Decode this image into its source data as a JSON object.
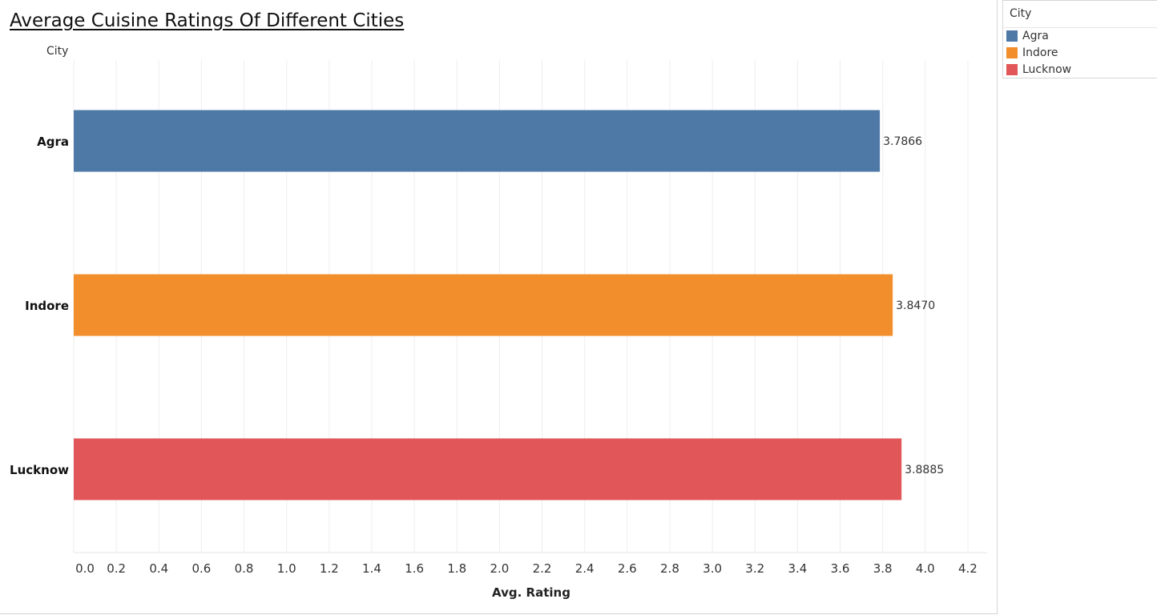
{
  "chart_data": {
    "type": "bar",
    "orientation": "horizontal",
    "title": "Average Cuisine Ratings Of Different Cities",
    "row_header": "City",
    "xlabel": "Avg. Rating",
    "xlim": [
      0,
      4.3
    ],
    "xticks": [
      "0.0",
      "0.2",
      "0.4",
      "0.6",
      "0.8",
      "1.0",
      "1.2",
      "1.4",
      "1.6",
      "1.8",
      "2.0",
      "2.2",
      "2.4",
      "2.6",
      "2.8",
      "3.0",
      "3.2",
      "3.4",
      "3.6",
      "3.8",
      "4.0",
      "4.2"
    ],
    "categories": [
      "Agra",
      "Indore",
      "Lucknow"
    ],
    "values": [
      3.7866,
      3.847,
      3.8885
    ],
    "value_labels": [
      "3.7866",
      "3.8470",
      "3.8885"
    ],
    "colors": [
      "#4e79a7",
      "#f28e2b",
      "#e15759"
    ],
    "grid": "vertical",
    "legend_position": "right"
  },
  "legend": {
    "title": "City",
    "items": [
      {
        "label": "Agra",
        "color": "#4e79a7"
      },
      {
        "label": "Indore",
        "color": "#f28e2b"
      },
      {
        "label": "Lucknow",
        "color": "#e15759"
      }
    ]
  }
}
